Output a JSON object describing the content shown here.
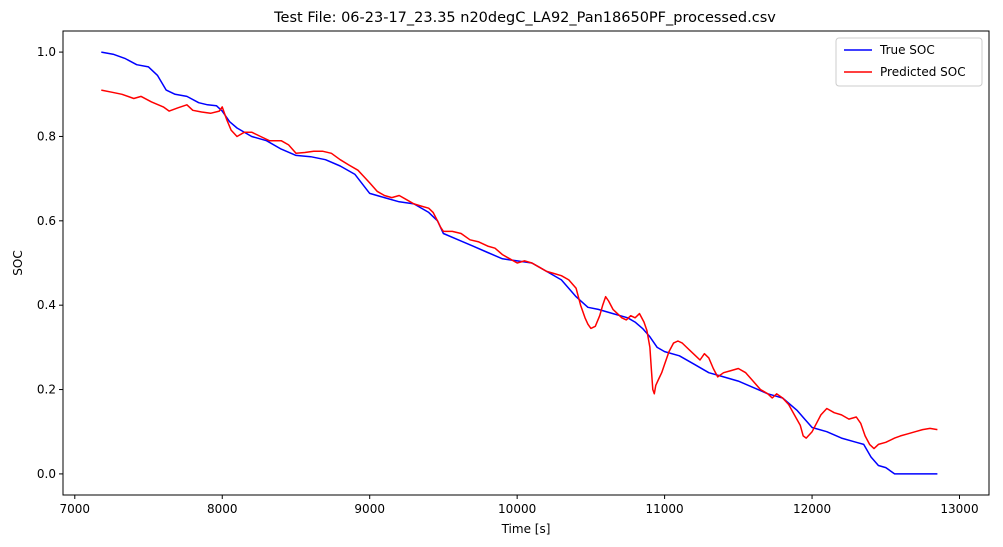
{
  "chart_data": {
    "type": "line",
    "title": "Test File: 06-23-17_23.35 n20degC_LA92_Pan18650PF_processed.csv",
    "xlabel": "Time [s]",
    "ylabel": "SOC",
    "xlim": [
      6920,
      13200
    ],
    "ylim": [
      -0.05,
      1.05
    ],
    "xticks": [
      7000,
      8000,
      9000,
      10000,
      11000,
      12000,
      13000
    ],
    "xtick_labels": [
      "7000",
      "8000",
      "9000",
      "10000",
      "11000",
      "12000",
      "13000"
    ],
    "yticks": [
      0.0,
      0.2,
      0.4,
      0.6,
      0.8,
      1.0
    ],
    "ytick_labels": [
      "0.0",
      "0.2",
      "0.4",
      "0.6",
      "0.8",
      "1.0"
    ],
    "grid": false,
    "legend": "top-right",
    "series": [
      {
        "name": "True SOC",
        "color": "#0000ff",
        "x": [
          7180,
          7260,
          7340,
          7420,
          7500,
          7560,
          7620,
          7680,
          7760,
          7840,
          7900,
          7960,
          8000,
          8050,
          8100,
          8200,
          8300,
          8400,
          8500,
          8600,
          8700,
          8800,
          8900,
          9000,
          9100,
          9200,
          9300,
          9400,
          9460,
          9500,
          9600,
          9700,
          9800,
          9900,
          10000,
          10100,
          10200,
          10300,
          10400,
          10480,
          10550,
          10650,
          10750,
          10800,
          10850,
          10900,
          10950,
          11000,
          11100,
          11200,
          11300,
          11400,
          11500,
          11600,
          11700,
          11800,
          11900,
          11950,
          12000,
          12100,
          12200,
          12300,
          12350,
          12400,
          12450,
          12500,
          12560,
          12650,
          12750,
          12850
        ],
        "y": [
          1.0,
          0.995,
          0.985,
          0.97,
          0.965,
          0.945,
          0.91,
          0.9,
          0.895,
          0.88,
          0.875,
          0.873,
          0.86,
          0.835,
          0.82,
          0.8,
          0.79,
          0.77,
          0.755,
          0.752,
          0.745,
          0.73,
          0.71,
          0.665,
          0.655,
          0.645,
          0.64,
          0.62,
          0.6,
          0.57,
          0.555,
          0.54,
          0.525,
          0.51,
          0.505,
          0.5,
          0.48,
          0.46,
          0.42,
          0.395,
          0.39,
          0.38,
          0.37,
          0.36,
          0.345,
          0.325,
          0.3,
          0.29,
          0.28,
          0.26,
          0.24,
          0.23,
          0.22,
          0.205,
          0.19,
          0.18,
          0.15,
          0.13,
          0.11,
          0.1,
          0.085,
          0.075,
          0.07,
          0.04,
          0.02,
          0.015,
          0.0,
          0.0,
          0.0,
          0.0
        ]
      },
      {
        "name": "Predicted SOC",
        "color": "#ff0000",
        "x": [
          7180,
          7250,
          7320,
          7400,
          7450,
          7520,
          7600,
          7640,
          7700,
          7760,
          7800,
          7860,
          7920,
          7980,
          8000,
          8030,
          8060,
          8100,
          8150,
          8200,
          8260,
          8320,
          8400,
          8450,
          8500,
          8560,
          8620,
          8680,
          8740,
          8800,
          8860,
          8920,
          8960,
          9000,
          9050,
          9100,
          9150,
          9200,
          9250,
          9300,
          9350,
          9400,
          9430,
          9460,
          9480,
          9500,
          9560,
          9620,
          9680,
          9740,
          9800,
          9850,
          9900,
          9950,
          10000,
          10050,
          10100,
          10150,
          10200,
          10250,
          10300,
          10350,
          10400,
          10430,
          10460,
          10480,
          10500,
          10530,
          10560,
          10580,
          10600,
          10620,
          10650,
          10680,
          10710,
          10740,
          10770,
          10800,
          10830,
          10860,
          10880,
          10900,
          10910,
          10920,
          10930,
          10940,
          10960,
          10980,
          11000,
          11030,
          11060,
          11090,
          11120,
          11150,
          11180,
          11210,
          11240,
          11270,
          11300,
          11330,
          11360,
          11400,
          11450,
          11500,
          11550,
          11600,
          11650,
          11700,
          11730,
          11760,
          11800,
          11840,
          11880,
          11920,
          11940,
          11960,
          12000,
          12030,
          12060,
          12100,
          12150,
          12200,
          12250,
          12300,
          12330,
          12360,
          12390,
          12420,
          12450,
          12500,
          12560,
          12600,
          12650,
          12700,
          12750,
          12800,
          12850
        ],
        "y": [
          0.91,
          0.905,
          0.9,
          0.89,
          0.895,
          0.882,
          0.87,
          0.86,
          0.868,
          0.875,
          0.862,
          0.858,
          0.855,
          0.86,
          0.87,
          0.84,
          0.815,
          0.8,
          0.81,
          0.81,
          0.8,
          0.79,
          0.79,
          0.78,
          0.76,
          0.762,
          0.765,
          0.765,
          0.76,
          0.745,
          0.732,
          0.72,
          0.705,
          0.69,
          0.67,
          0.66,
          0.655,
          0.66,
          0.65,
          0.64,
          0.635,
          0.63,
          0.62,
          0.6,
          0.585,
          0.575,
          0.575,
          0.57,
          0.555,
          0.55,
          0.54,
          0.535,
          0.52,
          0.51,
          0.5,
          0.505,
          0.5,
          0.49,
          0.48,
          0.475,
          0.47,
          0.46,
          0.44,
          0.4,
          0.37,
          0.355,
          0.345,
          0.35,
          0.375,
          0.4,
          0.42,
          0.41,
          0.39,
          0.38,
          0.37,
          0.365,
          0.375,
          0.37,
          0.38,
          0.36,
          0.34,
          0.3,
          0.25,
          0.2,
          0.19,
          0.21,
          0.225,
          0.24,
          0.26,
          0.29,
          0.31,
          0.315,
          0.31,
          0.3,
          0.29,
          0.28,
          0.27,
          0.285,
          0.275,
          0.25,
          0.23,
          0.24,
          0.245,
          0.25,
          0.24,
          0.22,
          0.2,
          0.19,
          0.18,
          0.19,
          0.18,
          0.165,
          0.14,
          0.115,
          0.09,
          0.085,
          0.1,
          0.12,
          0.14,
          0.155,
          0.145,
          0.14,
          0.13,
          0.135,
          0.12,
          0.09,
          0.07,
          0.06,
          0.07,
          0.075,
          0.085,
          0.09,
          0.095,
          0.1,
          0.105,
          0.108,
          0.105
        ]
      }
    ]
  }
}
